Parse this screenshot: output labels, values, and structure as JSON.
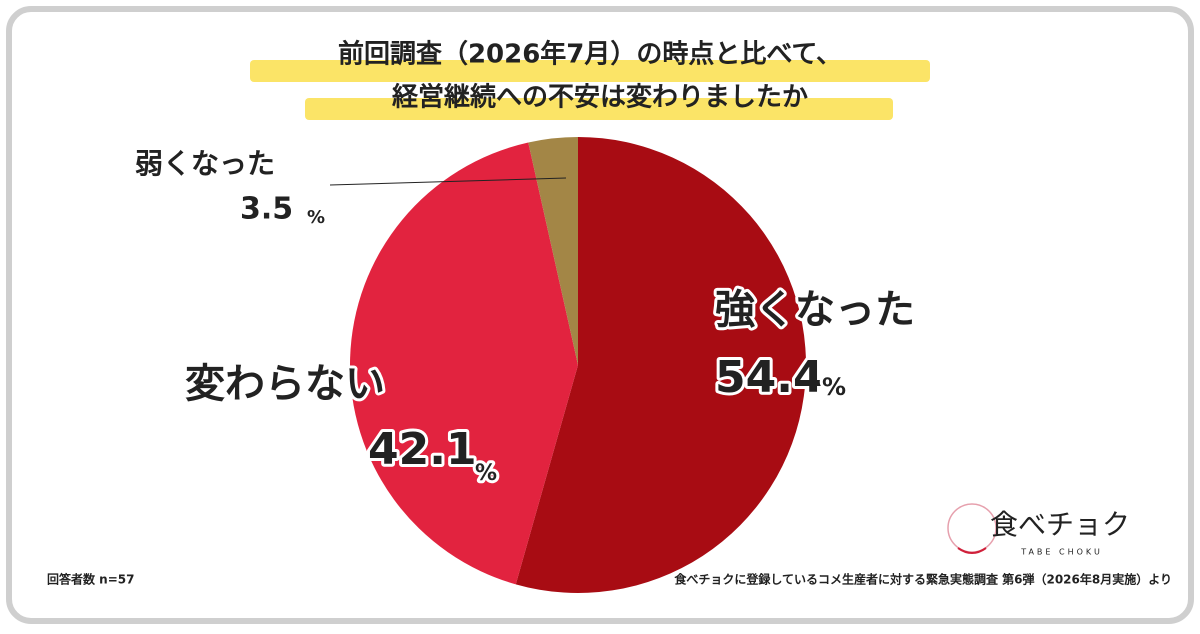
{
  "chart_data": {
    "type": "pie",
    "title": [
      "前回調査（2026年7月）の時点と比べて、",
      "経営継続への不安は変わりましたか"
    ],
    "categories": [
      "強くなった",
      "変わらない",
      "弱くなった"
    ],
    "values": [
      54.4,
      42.1,
      3.5
    ],
    "colors": [
      "#a80c13",
      "#e2233f",
      "#a38646"
    ],
    "unit": "%"
  },
  "footer": {
    "sample_size": "回答者数 n=57",
    "source": "食べチョクに登録しているコメ生産者に対する緊急実態調査 第6弾（2026年8月実施）より"
  },
  "logo": {
    "name": "食べチョク",
    "romaji": "TABE CHOKU"
  }
}
